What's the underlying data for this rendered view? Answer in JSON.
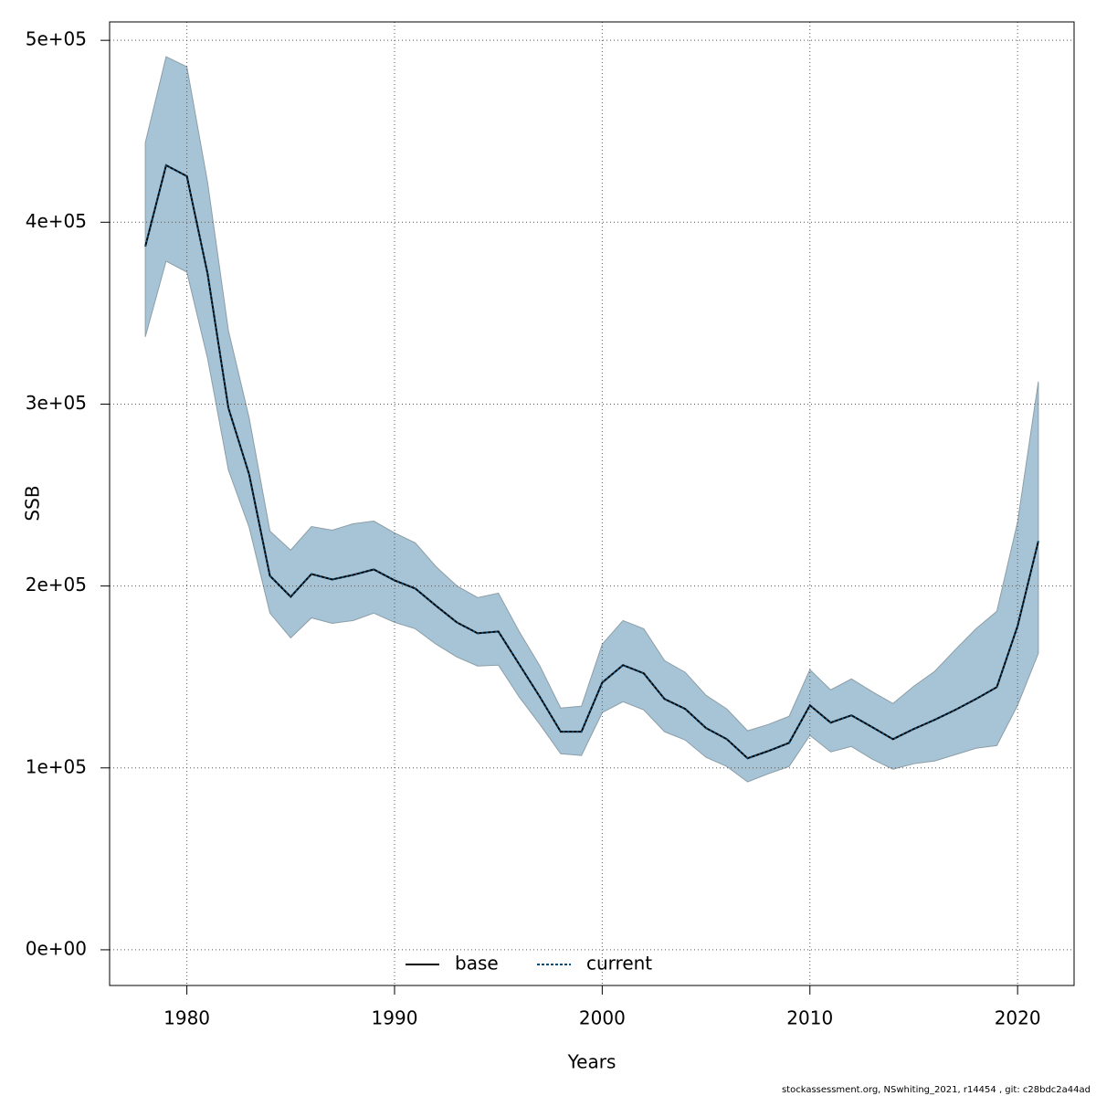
{
  "chart_data": {
    "type": "line",
    "x_label": "Years",
    "y_label": "SSB",
    "footnote": "stockassessment.org, NSwhiting_2021, r14454 , git: c28bdc2a44ad",
    "x": [
      1978,
      1979,
      1980,
      1981,
      1982,
      1983,
      1984,
      1985,
      1986,
      1987,
      1988,
      1989,
      1990,
      1991,
      1992,
      1993,
      1994,
      1995,
      1996,
      1997,
      1998,
      1999,
      2000,
      2001,
      2002,
      2003,
      2004,
      2005,
      2006,
      2007,
      2008,
      2009,
      2010,
      2011,
      2012,
      2013,
      2014,
      2015,
      2016,
      2017,
      2018,
      2019,
      2020,
      2021
    ],
    "series": [
      {
        "name": "base",
        "color": "#000000",
        "dash": false,
        "values": [
          386700,
          431300,
          425300,
          371600,
          297900,
          261300,
          205600,
          194100,
          206600,
          203600,
          206100,
          209100,
          203100,
          198600,
          189100,
          180000,
          174000,
          175000,
          157000,
          139000,
          119900,
          119900,
          146900,
          156500,
          152000,
          137900,
          132400,
          121900,
          115800,
          105300,
          109300,
          113800,
          134400,
          124900,
          128900,
          122400,
          115800,
          121400,
          126400,
          131900,
          137900,
          144400,
          178000,
          224700
        ]
      },
      {
        "name": "current",
        "color": "#0a4a75",
        "dash": true,
        "values": [
          386700,
          431300,
          425300,
          371600,
          297900,
          261300,
          205600,
          194100,
          206600,
          203600,
          206100,
          209100,
          203100,
          198600,
          189100,
          180000,
          174000,
          175000,
          157000,
          139000,
          119900,
          119900,
          146900,
          156500,
          152000,
          137900,
          132400,
          121900,
          115800,
          105300,
          109300,
          113800,
          134400,
          124900,
          128900,
          122400,
          115800,
          121400,
          126400,
          131900,
          137900,
          144400,
          178000,
          224700
        ]
      }
    ],
    "confidence_band": {
      "color": "#a6c4d5",
      "edge_color": "#8c9ea8",
      "upper": [
        443800,
        491000,
        485500,
        421800,
        340500,
        292400,
        230200,
        219700,
        232700,
        230700,
        234200,
        235700,
        229200,
        223700,
        210600,
        200100,
        193600,
        196100,
        175000,
        156000,
        132900,
        133900,
        168000,
        181000,
        176500,
        159000,
        152500,
        139900,
        132400,
        120400,
        123900,
        128400,
        154000,
        142900,
        148900,
        141900,
        135400,
        144900,
        153000,
        165000,
        176500,
        186100,
        235200,
        312400
      ],
      "lower": [
        337000,
        378600,
        372600,
        325000,
        263800,
        232200,
        185100,
        171500,
        182500,
        179500,
        181000,
        185100,
        180000,
        176500,
        168000,
        161000,
        156000,
        156500,
        139000,
        123900,
        107800,
        106800,
        130400,
        136400,
        131900,
        119900,
        115300,
        105800,
        100800,
        92300,
        96800,
        100800,
        117900,
        108800,
        111800,
        104800,
        99300,
        102300,
        103800,
        107300,
        110800,
        112300,
        134400,
        163000
      ]
    },
    "xlim": [
      1976.28,
      2022.72
    ],
    "ylim": [
      -19620,
      510120
    ],
    "xticks": [
      1980,
      1990,
      2000,
      2010,
      2020
    ],
    "yticks": [
      {
        "value": 0,
        "label": "0e+00"
      },
      {
        "value": 100000,
        "label": "1e+05"
      },
      {
        "value": 200000,
        "label": "2e+05"
      },
      {
        "value": 300000,
        "label": "3e+05"
      },
      {
        "value": 400000,
        "label": "4e+05"
      },
      {
        "value": 500000,
        "label": "5e+05"
      }
    ],
    "grid": true,
    "legend_position": "bottom"
  }
}
